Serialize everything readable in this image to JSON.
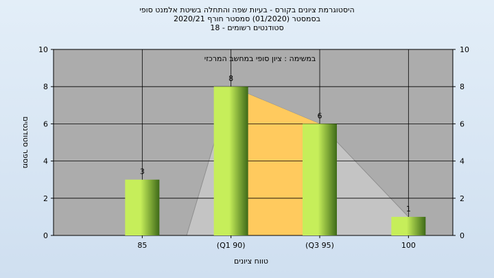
{
  "title": {
    "line1": "היסטוגרמת ציונים בקורס - בעיות שפה והתחלה בשיטת אלמנט סופי",
    "line2": "בסמסטר  (01/2020)  סמסטר חורף  2020/21",
    "line3": "סטודנטים רשומים - 18"
  },
  "colors": {
    "plot_bg": "#acacac",
    "bar_light": "#c6ee5a",
    "bar_dark": "#3e6a18",
    "area_gray": "#c4c4c4",
    "area_orange": "#ffca5e",
    "grid": "#000000"
  },
  "chart_data": {
    "type": "bar",
    "annotation": "במשימה : ציון סופי במחשב המרכזי",
    "xlabel": "טווח ציונים",
    "ylabel": "מספר סטודנטים",
    "ylim": [
      0,
      10
    ],
    "yticks": [
      0,
      2,
      4,
      6,
      8,
      10
    ],
    "grid": true,
    "categories": [
      "85",
      "(Q1 90)",
      "(Q3 95)",
      "100"
    ],
    "values": [
      3,
      8,
      6,
      1
    ],
    "labels": [
      "3",
      "8",
      "6",
      "1"
    ],
    "overlay_area": {
      "x": [
        0.5,
        1,
        2,
        3
      ],
      "y": [
        0,
        8,
        6,
        1
      ],
      "highlight_segment": [
        1,
        2
      ]
    }
  }
}
